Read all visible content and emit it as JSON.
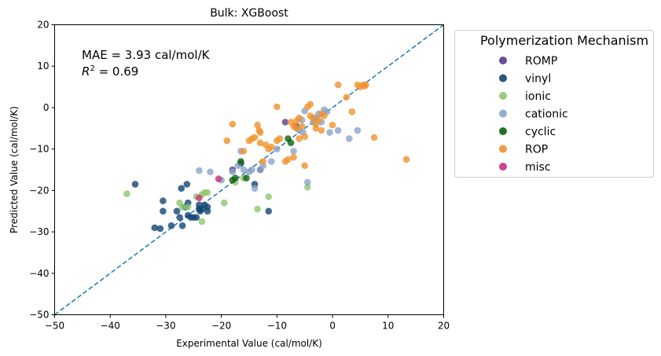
{
  "chart_data": {
    "type": "scatter",
    "title": "Bulk: XGBoost",
    "xlabel": "Experimental Value (cal/mol/K)",
    "ylabel": "Predicted Value (cal/mol/K)",
    "xlim": [
      -50,
      20
    ],
    "ylim": [
      -50,
      20
    ],
    "x_ticks": [
      -50,
      -40,
      -30,
      -20,
      -10,
      0,
      10,
      20
    ],
    "y_ticks": [
      -50,
      -40,
      -30,
      -20,
      -10,
      0,
      10,
      20
    ],
    "grid": false,
    "legend": {
      "title": "Polymerization Mechanism",
      "placement": "outside-right"
    },
    "reference_line": {
      "style": "dashed",
      "color": "#1f77b4",
      "from": [
        -50,
        -50
      ],
      "to": [
        20,
        20
      ]
    },
    "annotations": {
      "mae": "MAE = 3.93 cal/mol/K",
      "r2_prefix": "R",
      "r2_sup": "2",
      "r2_value": " = 0.69"
    },
    "series": [
      {
        "name": "ROMP",
        "color": "#5b3a8c",
        "points": [
          [
            -8.5,
            -3.5
          ],
          [
            -18,
            -15
          ],
          [
            -13,
            -15
          ],
          [
            -6.5,
            -4.5
          ]
        ]
      },
      {
        "name": "vinyl",
        "color": "#124572",
        "points": [
          [
            -35.5,
            -18.5
          ],
          [
            -32,
            -29
          ],
          [
            -31,
            -29.2
          ],
          [
            -30.5,
            -22.5
          ],
          [
            -30.5,
            -25
          ],
          [
            -29,
            -28.5
          ],
          [
            -28,
            -25
          ],
          [
            -27.5,
            -26.5
          ],
          [
            -27.2,
            -19.5
          ],
          [
            -27,
            -28.5
          ],
          [
            -26.5,
            -24
          ],
          [
            -26.2,
            -18.5
          ],
          [
            -26,
            -26
          ],
          [
            -26,
            -23
          ],
          [
            -25.5,
            -26.5
          ],
          [
            -25,
            -26.5
          ],
          [
            -24.5,
            -26.5
          ],
          [
            -24,
            -23.5
          ],
          [
            -24,
            -24.5
          ],
          [
            -23.8,
            -25
          ],
          [
            -23.5,
            -24.5
          ],
          [
            -23,
            -23.5
          ],
          [
            -22.5,
            -25
          ],
          [
            -22.5,
            -24
          ],
          [
            -16.5,
            -13.5
          ],
          [
            -14,
            -18.5
          ],
          [
            -11.5,
            -25
          ]
        ]
      },
      {
        "name": "ionic",
        "color": "#8fc66e",
        "points": [
          [
            -37,
            -20.8
          ],
          [
            -27.5,
            -23
          ],
          [
            -27,
            -24
          ],
          [
            -26,
            -24
          ],
          [
            -24.5,
            -21.5
          ],
          [
            -23.5,
            -27.5
          ],
          [
            -23.5,
            -21
          ],
          [
            -23,
            -20.5
          ],
          [
            -22.5,
            -20.5
          ],
          [
            -19.5,
            -23
          ],
          [
            -17.5,
            -18
          ],
          [
            -16,
            -17
          ],
          [
            -13.5,
            -24.5
          ],
          [
            -11.5,
            -21.5
          ],
          [
            -4.5,
            -19.2
          ]
        ]
      },
      {
        "name": "cationic",
        "color": "#88a4c8",
        "points": [
          [
            -24,
            -15.2
          ],
          [
            -22,
            -15.5
          ],
          [
            -20,
            -17.5
          ],
          [
            -18,
            -15.5
          ],
          [
            -17,
            -14
          ],
          [
            -16.5,
            -10.5
          ],
          [
            -16,
            -15
          ],
          [
            -15,
            -15.5
          ],
          [
            -14.5,
            -15
          ],
          [
            -14,
            -19.5
          ],
          [
            -13,
            -15
          ],
          [
            -12.5,
            -14
          ],
          [
            -11,
            -13
          ],
          [
            -10,
            -10
          ],
          [
            -7,
            -10.5
          ],
          [
            -6,
            -5.5
          ],
          [
            -5.5,
            -3
          ],
          [
            -5.3,
            -6
          ],
          [
            -5,
            -0.8
          ],
          [
            -4.5,
            -18
          ],
          [
            -3.5,
            -3.5
          ],
          [
            -3,
            -2.5
          ],
          [
            -2.5,
            -1.5
          ],
          [
            -2,
            -3.5
          ],
          [
            -1.5,
            -0.5
          ],
          [
            -1,
            -1
          ],
          [
            -0.5,
            -6
          ],
          [
            1,
            -5.5
          ],
          [
            3,
            -7.5
          ],
          [
            4.5,
            -5.5
          ]
        ]
      },
      {
        "name": "cyclic",
        "color": "#0c6312",
        "points": [
          [
            -18,
            -17.5
          ],
          [
            -17.5,
            -17
          ],
          [
            -16.5,
            -13
          ],
          [
            -15.5,
            -17
          ],
          [
            -8,
            -7.5
          ],
          [
            -7.5,
            -8.5
          ]
        ]
      },
      {
        "name": "ROP",
        "color": "#f0922d",
        "points": [
          [
            -19,
            -8
          ],
          [
            -18,
            -4
          ],
          [
            -16,
            -10.5
          ],
          [
            -15,
            -8
          ],
          [
            -14.5,
            -7.5
          ],
          [
            -14,
            -7.2
          ],
          [
            -13.5,
            -4.2
          ],
          [
            -13.2,
            -5.5
          ],
          [
            -13,
            -6
          ],
          [
            -13,
            -8.5
          ],
          [
            -12.5,
            -13
          ],
          [
            -12,
            -9
          ],
          [
            -11.5,
            -10
          ],
          [
            -11,
            -9.5
          ],
          [
            -10,
            0.2
          ],
          [
            -10,
            -8
          ],
          [
            -9.5,
            -7.5
          ],
          [
            -8.5,
            -13
          ],
          [
            -8,
            -12.5
          ],
          [
            -7.5,
            -3.5
          ],
          [
            -7,
            -4.5
          ],
          [
            -7,
            -12
          ],
          [
            -6.5,
            -3.2
          ],
          [
            -6.5,
            -5
          ],
          [
            -6,
            -2.5
          ],
          [
            -6,
            -7.5
          ],
          [
            -5.5,
            -4.5
          ],
          [
            -5,
            -7
          ],
          [
            -5,
            -14
          ],
          [
            -4.5,
            0.2
          ],
          [
            -4,
            0.8
          ],
          [
            -4,
            -2
          ],
          [
            -3.5,
            -2.5
          ],
          [
            -3,
            -4
          ],
          [
            -3,
            -5
          ],
          [
            -2.5,
            -3
          ],
          [
            -2,
            -5.5
          ],
          [
            -2,
            -1.5
          ],
          [
            -1.5,
            -2
          ],
          [
            0,
            -4.2
          ],
          [
            1,
            5.5
          ],
          [
            2.5,
            2.5
          ],
          [
            3.5,
            -1
          ],
          [
            4.5,
            5.5
          ],
          [
            5,
            5
          ],
          [
            5.5,
            5.5
          ],
          [
            5.8,
            5.2
          ],
          [
            6,
            5.5
          ],
          [
            7.5,
            -7.2
          ],
          [
            13.3,
            -12.5
          ]
        ]
      },
      {
        "name": "misc",
        "color": "#c8317a",
        "points": [
          [
            -20.5,
            -17.2
          ],
          [
            -24,
            -21.8
          ]
        ]
      }
    ]
  }
}
